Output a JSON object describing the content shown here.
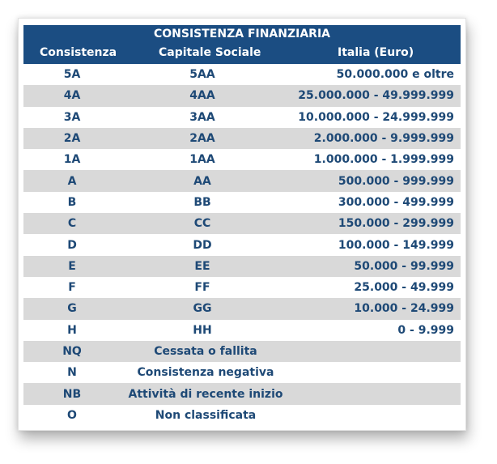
{
  "title": "CONSISTENZA FINANZIARIA",
  "columns": [
    "Consistenza",
    "Capitale Sociale",
    "Italia (Euro)"
  ],
  "rows": [
    {
      "consistenza": "5A",
      "capitale": "5AA",
      "italia": "50.000.000 e oltre"
    },
    {
      "consistenza": "4A",
      "capitale": "4AA",
      "italia": "25.000.000 - 49.999.999"
    },
    {
      "consistenza": "3A",
      "capitale": "3AA",
      "italia": "10.000.000 - 24.999.999"
    },
    {
      "consistenza": "2A",
      "capitale": "2AA",
      "italia": "2.000.000 - 9.999.999"
    },
    {
      "consistenza": "1A",
      "capitale": "1AA",
      "italia": "1.000.000 - 1.999.999"
    },
    {
      "consistenza": "A",
      "capitale": "AA",
      "italia": "500.000 - 999.999"
    },
    {
      "consistenza": "B",
      "capitale": "BB",
      "italia": "300.000 - 499.999"
    },
    {
      "consistenza": "C",
      "capitale": "CC",
      "italia": "150.000 - 299.999"
    },
    {
      "consistenza": "D",
      "capitale": "DD",
      "italia": "100.000 - 149.999"
    },
    {
      "consistenza": "E",
      "capitale": "EE",
      "italia": "50.000 - 99.999"
    },
    {
      "consistenza": "F",
      "capitale": "FF",
      "italia": "25.000 - 49.999"
    },
    {
      "consistenza": "G",
      "capitale": "GG",
      "italia": "10.000 - 24.999"
    },
    {
      "consistenza": "H",
      "capitale": "HH",
      "italia": "0 - 9.999"
    }
  ],
  "special_rows": [
    {
      "code": "NQ",
      "description": "Cessata o fallita"
    },
    {
      "code": "N",
      "description": "Consistenza negativa"
    },
    {
      "code": "NB",
      "description": "Attività di recente inizio"
    },
    {
      "code": "O",
      "description": "Non classificata"
    }
  ],
  "colors": {
    "header_bg": "#1b4d82",
    "header_text": "#ffffff",
    "row_text": "#1e4976",
    "row_alt_bg": "#d9d9d9"
  }
}
